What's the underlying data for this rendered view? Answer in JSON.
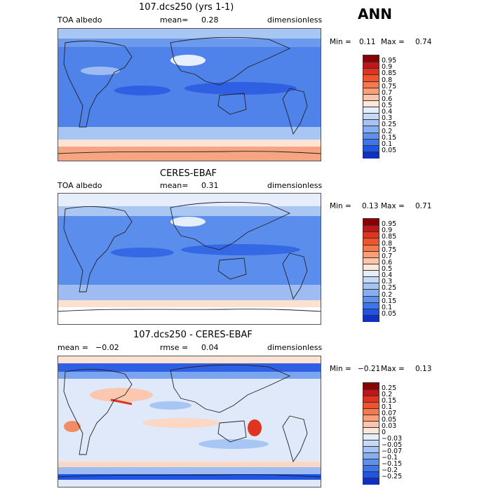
{
  "season": "ANN",
  "panels": [
    {
      "id": "model",
      "title": "107.dcs250 (yrs 1-1)",
      "left_label": "TOA albedo",
      "mid_label": "mean=",
      "mid_value": "0.28",
      "right_label": "dimensionless",
      "min_label": "Min =",
      "min_value": "0.11",
      "max_label": "Max =",
      "max_value": "0.74",
      "colorbar": {
        "levels": [
          "0.95",
          "0.9",
          "0.85",
          "0.8",
          "0.75",
          "0.7",
          "0.6",
          "0.5",
          "0.4",
          "0.3",
          "0.25",
          "0.2",
          "0.15",
          "0.1",
          "0.05"
        ],
        "colors": [
          "#8b0000",
          "#c0161b",
          "#e0341f",
          "#f0542e",
          "#f7794b",
          "#fb9f78",
          "#fdc6ac",
          "#fce7d8",
          "#e6eefb",
          "#c6d9f7",
          "#a5c3f3",
          "#86aef0",
          "#5f90ec",
          "#3f75ea",
          "#1f55e6",
          "#0f30c0"
        ]
      }
    },
    {
      "id": "obs",
      "title": "CERES-EBAF",
      "left_label": "TOA albedo",
      "mid_label": "mean=",
      "mid_value": "0.31",
      "right_label": "dimensionless",
      "min_label": "Min =",
      "min_value": "0.13",
      "max_label": "Max =",
      "max_value": "0.71",
      "colorbar": {
        "levels": [
          "0.95",
          "0.9",
          "0.85",
          "0.8",
          "0.75",
          "0.7",
          "0.6",
          "0.5",
          "0.4",
          "0.3",
          "0.25",
          "0.2",
          "0.15",
          "0.1",
          "0.05"
        ],
        "colors": [
          "#8b0000",
          "#c0161b",
          "#e0341f",
          "#f0542e",
          "#f7794b",
          "#fb9f78",
          "#fdc6ac",
          "#fce7d8",
          "#e6eefb",
          "#c6d9f7",
          "#a5c3f3",
          "#86aef0",
          "#5f90ec",
          "#3f75ea",
          "#1f55e6",
          "#0f30c0"
        ]
      }
    },
    {
      "id": "diff",
      "title": "107.dcs250 - CERES-EBAF",
      "left_label": "mean =",
      "left_value": "−0.02",
      "mid_label": "rmse =",
      "mid_value": "0.04",
      "right_label": "dimensionless",
      "min_label": "Min =",
      "min_value": "−0.21",
      "max_label": "Max =",
      "max_value": "0.13",
      "colorbar": {
        "levels": [
          "0.25",
          "0.2",
          "0.15",
          "0.1",
          "0.07",
          "0.05",
          "0.03",
          "0",
          "−0.03",
          "−0.05",
          "−0.07",
          "−0.1",
          "−0.15",
          "−0.2",
          "−0.25"
        ],
        "colors": [
          "#8b0000",
          "#c0161b",
          "#e0341f",
          "#f0542e",
          "#f7794b",
          "#fb9f78",
          "#fdc6ac",
          "#fce7d8",
          "#e6eefb",
          "#c6d9f7",
          "#a5c3f3",
          "#86aef0",
          "#5f90ec",
          "#3f75ea",
          "#1f55e6",
          "#0f30c0"
        ]
      }
    }
  ],
  "chart_data": [
    {
      "type": "heatmap",
      "title": "107.dcs250 (yrs 1-1)",
      "variable": "TOA albedo",
      "units": "dimensionless",
      "mean": 0.28,
      "min": 0.11,
      "max": 0.74,
      "contour_levels": [
        0.05,
        0.1,
        0.15,
        0.2,
        0.25,
        0.3,
        0.4,
        0.5,
        0.6,
        0.7,
        0.75,
        0.8,
        0.85,
        0.9,
        0.95
      ]
    },
    {
      "type": "heatmap",
      "title": "CERES-EBAF",
      "variable": "TOA albedo",
      "units": "dimensionless",
      "mean": 0.31,
      "min": 0.13,
      "max": 0.71,
      "contour_levels": [
        0.05,
        0.1,
        0.15,
        0.2,
        0.25,
        0.3,
        0.4,
        0.5,
        0.6,
        0.7,
        0.75,
        0.8,
        0.85,
        0.9,
        0.95
      ]
    },
    {
      "type": "heatmap",
      "title": "107.dcs250 - CERES-EBAF",
      "units": "dimensionless",
      "mean": -0.02,
      "rmse": 0.04,
      "min": -0.21,
      "max": 0.13,
      "contour_levels": [
        -0.25,
        -0.2,
        -0.15,
        -0.1,
        -0.07,
        -0.05,
        -0.03,
        0,
        0.03,
        0.05,
        0.07,
        0.1,
        0.15,
        0.2,
        0.25
      ]
    }
  ]
}
